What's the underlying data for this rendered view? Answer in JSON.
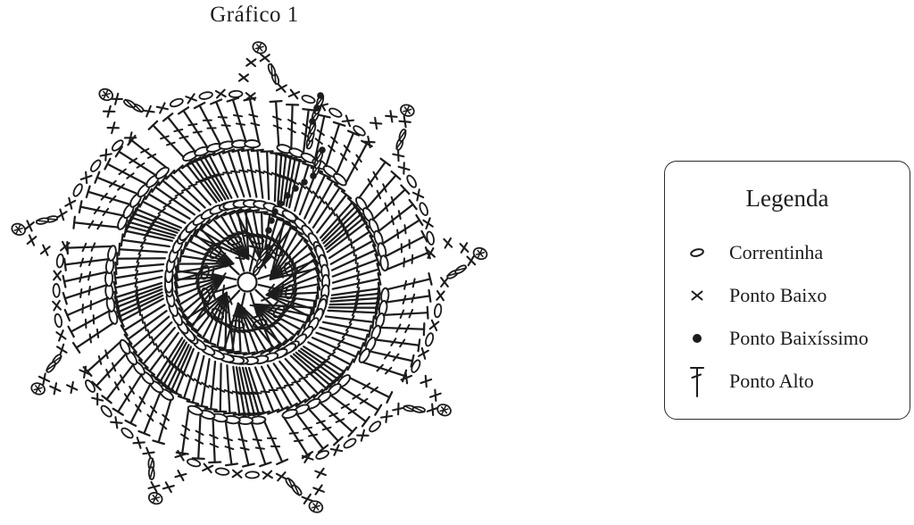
{
  "title": "Gráfico 1",
  "legend": {
    "title": "Legenda",
    "items": [
      {
        "symbol": "chain-oval",
        "label": "Correntinha"
      },
      {
        "symbol": "x-cross",
        "label": "Ponto Baixo"
      },
      {
        "symbol": "filled-dot",
        "label": "Ponto Baixíssimo"
      },
      {
        "symbol": "tall-stitch",
        "label": "Ponto Alto"
      }
    ]
  },
  "colors": {
    "ink": "#1c1c1c",
    "background": "#ffffff"
  },
  "chart_data": {
    "type": "crochet-stitch-diagram",
    "motif": "spiral pinwheel medallion worked in rounds from a center ring",
    "stitch_key": {
      "correntinha": "chain stitch (open oval)",
      "ponto_baixo": "single crochet (x)",
      "ponto_baixissimo": "slip stitch (filled dot)",
      "ponto_alto": "double crochet (T with cross tick)"
    },
    "center": {
      "ring": 1,
      "round1_ponto_alto": 12
    },
    "arms": {
      "count": 9,
      "inner_fan_ponto_alto": 8,
      "chain_arc_ovals": 7,
      "dense_fan_ponto_alto": 12,
      "outer_row_ponto_alto": 7,
      "outer_row_chain_ovals": 6,
      "edge_ponto_baixo": 9,
      "edge_chain_ovals": 3,
      "tip_twisted_chains": 2,
      "tip_picot_knots": 1
    },
    "closing_seam": {
      "slip_stitch_dots": [
        [
          300,
          277
        ],
        [
          301,
          258
        ],
        [
          304,
          247
        ],
        [
          308,
          237
        ],
        [
          314,
          228
        ],
        [
          322,
          219
        ],
        [
          331,
          211
        ],
        [
          341,
          204
        ],
        [
          351,
          197
        ],
        [
          361,
          168
        ],
        [
          350,
          136
        ],
        [
          355,
          121
        ],
        [
          359,
          107
        ]
      ],
      "turning_chain_segments": [
        [
          286,
          306,
          297,
          281
        ],
        [
          353,
          194,
          359,
          170
        ],
        [
          346,
          164,
          351,
          139
        ],
        [
          352,
          133,
          360,
          109
        ]
      ]
    }
  }
}
